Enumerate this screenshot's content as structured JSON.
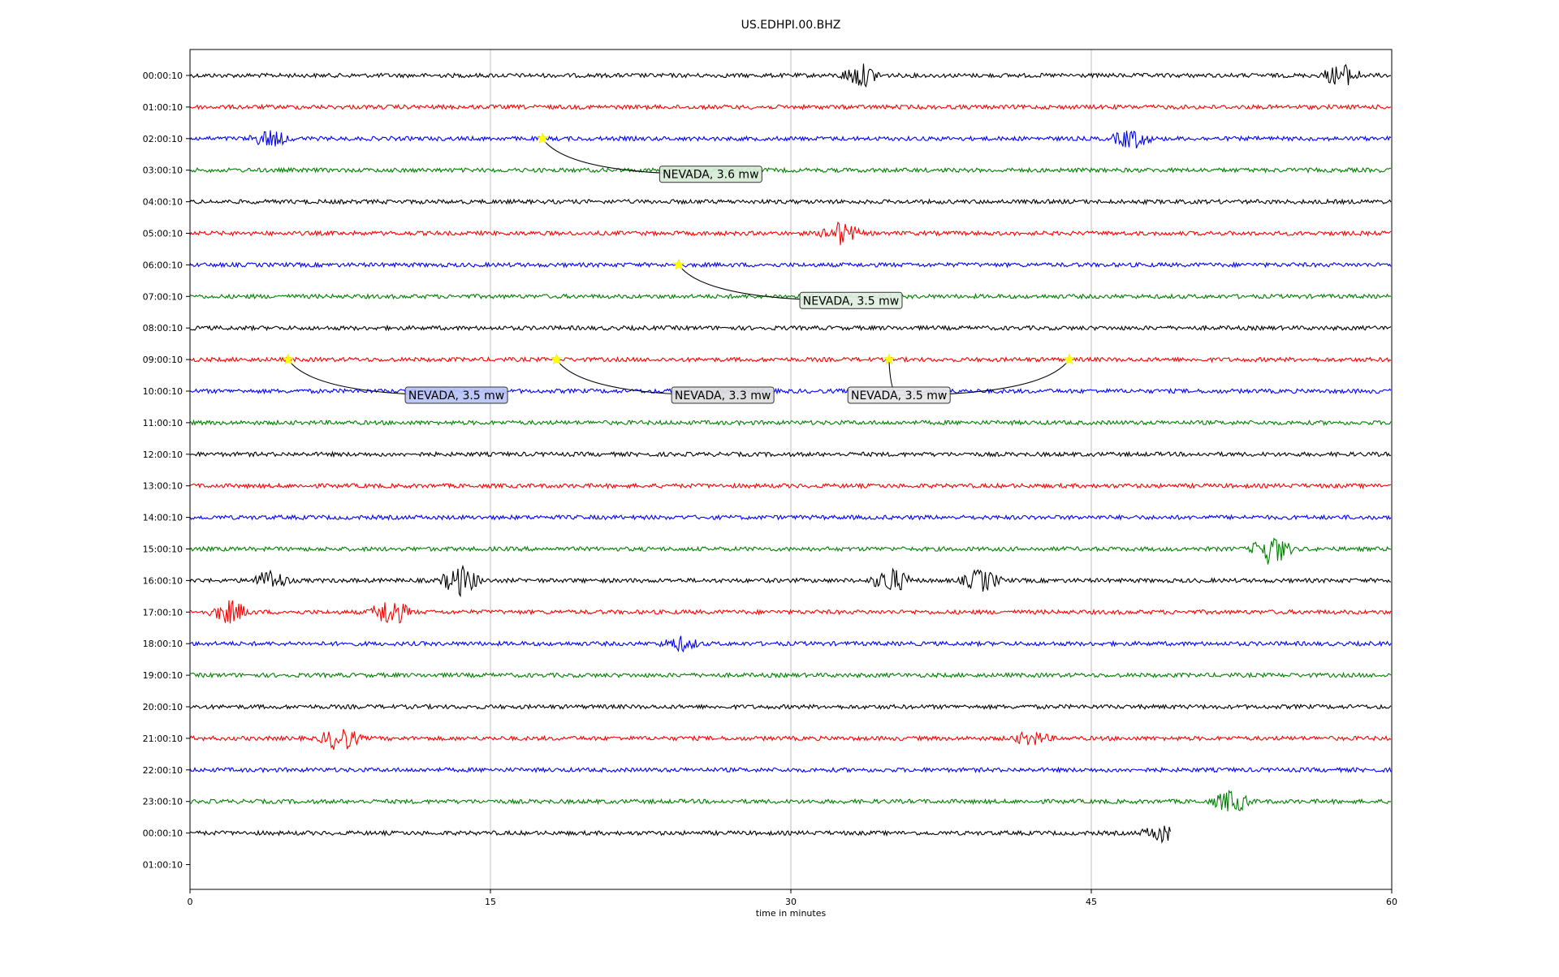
{
  "chart_data": {
    "type": "line",
    "title": "US.EDHPI.00.BHZ",
    "xlabel": "time in minutes",
    "ylabel": "",
    "xlim": [
      0,
      60
    ],
    "x_ticks": [
      "0",
      "15",
      "30",
      "45",
      "60"
    ],
    "grid": "vertical",
    "row_labels": [
      "00:00:10",
      "01:00:10",
      "02:00:10",
      "03:00:10",
      "04:00:10",
      "05:00:10",
      "06:00:10",
      "07:00:10",
      "08:00:10",
      "09:00:10",
      "10:00:10",
      "11:00:10",
      "12:00:10",
      "13:00:10",
      "14:00:10",
      "15:00:10",
      "16:00:10",
      "17:00:10",
      "18:00:10",
      "19:00:10",
      "20:00:10",
      "21:00:10",
      "22:00:10",
      "23:00:10",
      "00:00:10",
      "01:00:10"
    ],
    "row_colors": [
      "#000000",
      "#ff0000",
      "#0000ff",
      "#008000"
    ],
    "trace_end_minute_last_row": 49,
    "bursts": [
      {
        "row": 0,
        "minute": 33.5,
        "amp": 14
      },
      {
        "row": 0,
        "minute": 57.5,
        "amp": 14
      },
      {
        "row": 2,
        "minute": 4,
        "amp": 10
      },
      {
        "row": 2,
        "minute": 47,
        "amp": 12
      },
      {
        "row": 5,
        "minute": 32.5,
        "amp": 14
      },
      {
        "row": 15,
        "minute": 54,
        "amp": 20
      },
      {
        "row": 16,
        "minute": 4,
        "amp": 12
      },
      {
        "row": 16,
        "minute": 13.5,
        "amp": 18
      },
      {
        "row": 16,
        "minute": 35,
        "amp": 16
      },
      {
        "row": 16,
        "minute": 39.5,
        "amp": 14
      },
      {
        "row": 17,
        "minute": 2,
        "amp": 14
      },
      {
        "row": 17,
        "minute": 10,
        "amp": 18
      },
      {
        "row": 18,
        "minute": 24.5,
        "amp": 8
      },
      {
        "row": 21,
        "minute": 7.5,
        "amp": 16
      },
      {
        "row": 21,
        "minute": 42,
        "amp": 8
      },
      {
        "row": 23,
        "minute": 52,
        "amp": 14
      },
      {
        "row": 24,
        "minute": 48.5,
        "amp": 10
      }
    ],
    "events": [
      {
        "label": "NEVADA, 3.6 mw",
        "row": 2,
        "minute": 17.6,
        "label_row": 3,
        "label_minute": 26,
        "box_color": "#d6ecd6"
      },
      {
        "label": "NEVADA, 3.5 mw",
        "row": 6,
        "minute": 24.4,
        "label_row": 7,
        "label_minute": 33,
        "box_color": "#dfeedf"
      },
      {
        "label": "NEVADA, 3.5 mw",
        "row": 9,
        "minute": 4.9,
        "label_row": 10,
        "label_minute": 13.3,
        "box_color": "#b9c3f5"
      },
      {
        "label": "NEVADA, 3.3 mw",
        "row": 9,
        "minute": 18.3,
        "label_row": 10,
        "label_minute": 26.6,
        "box_color": "#dcdcdc"
      },
      {
        "label": "NEVADA, 3.5 mw",
        "row": 9,
        "minute": 34.9,
        "label_row": 10,
        "label_minute": 35.4,
        "box_color": "#e6e6e6"
      },
      {
        "label": "",
        "row": 9,
        "minute": 43.9,
        "label_row": 10,
        "label_minute": 35.4,
        "box_color": ""
      }
    ]
  }
}
